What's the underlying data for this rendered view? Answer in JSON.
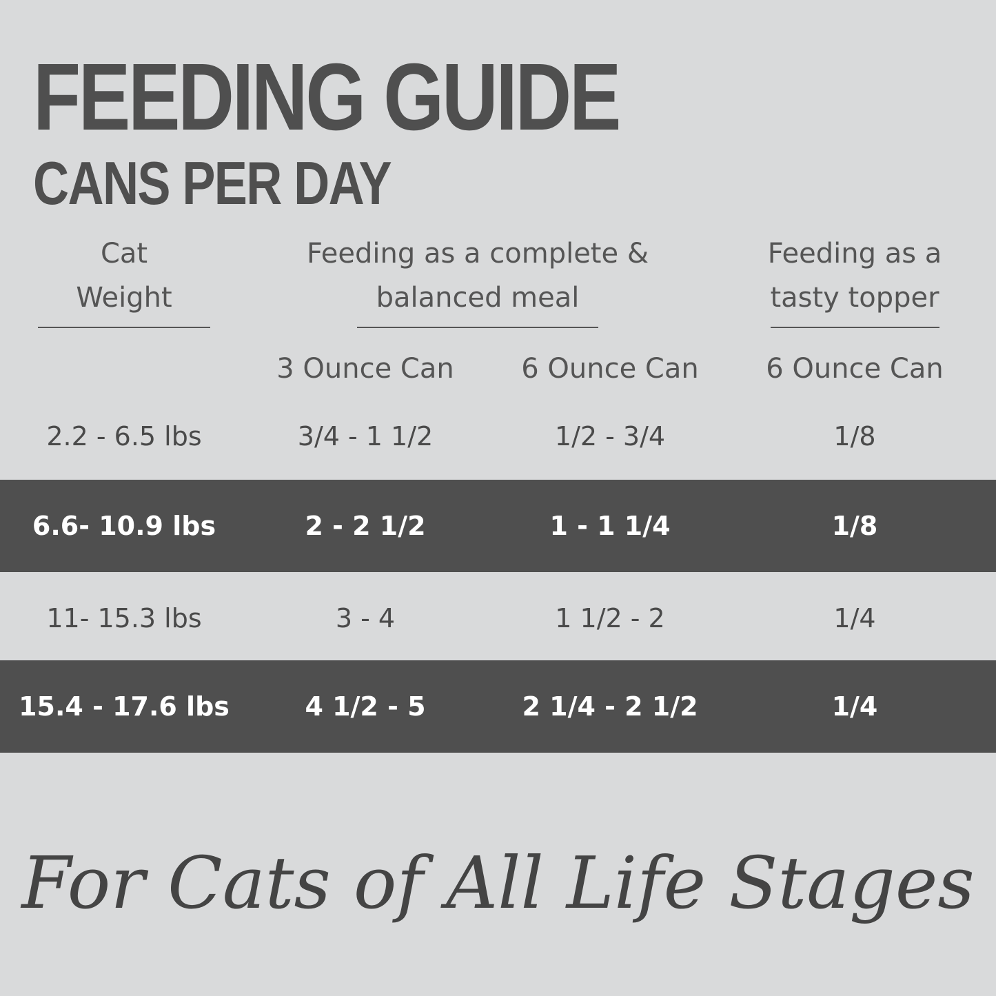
{
  "header": {
    "title": "FEEDING GUIDE",
    "subtitle": "CANS PER DAY"
  },
  "table": {
    "group_headers": [
      [
        "Cat",
        "Weight"
      ],
      [
        "Feeding as a complete &",
        "balanced meal"
      ],
      [
        "Feeding as a",
        "tasty topper"
      ]
    ],
    "column_headers": [
      "3 Ounce Can",
      "6 Ounce Can",
      "6 Ounce Can"
    ],
    "rows": [
      [
        "2.2 - 6.5 lbs",
        "3/4 - 1 1/2",
        "1/2 - 3/4",
        "1/8"
      ],
      [
        "6.6- 10.9 lbs",
        "2 - 2 1/2",
        "1 - 1 1/4",
        "1/8"
      ],
      [
        "11- 15.3 lbs",
        "3 - 4",
        "1 1/2 - 2",
        "1/4"
      ],
      [
        "15.4 - 17.6 lbs",
        "4 1/2 - 5",
        "2 1/4 - 2 1/2",
        "1/4"
      ]
    ]
  },
  "footer": {
    "tagline": "For Cats of All Life Stages"
  }
}
